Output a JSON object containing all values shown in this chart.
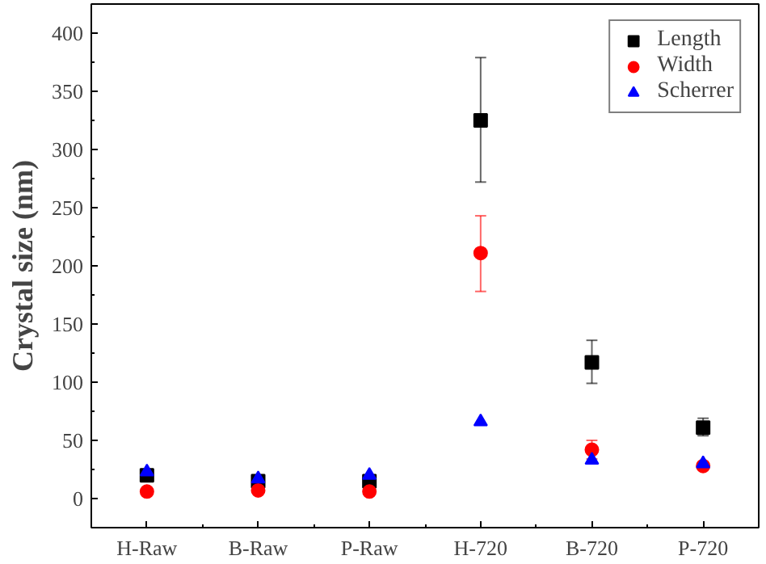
{
  "chart_data": {
    "type": "scatter",
    "ylabel": "Crystal size (nm)",
    "categories": [
      "H-Raw",
      "B-Raw",
      "P-Raw",
      "H-720",
      "B-720",
      "P-720"
    ],
    "ylim": [
      -25,
      425
    ],
    "yticks": [
      0,
      50,
      100,
      150,
      200,
      250,
      300,
      350,
      400
    ],
    "grid": false,
    "legend": "top right",
    "series": [
      {
        "name": "Length",
        "color": "#000000",
        "marker": "square",
        "values": [
          20,
          15,
          15,
          325,
          117,
          61
        ],
        "errors": [
          null,
          null,
          null,
          [
            272,
            379
          ],
          [
            99,
            136
          ],
          [
            54,
            69
          ]
        ]
      },
      {
        "name": "Width",
        "color": "#ff0000",
        "marker": "circle",
        "values": [
          6,
          7,
          6,
          211,
          42,
          28
        ],
        "errors": [
          null,
          null,
          null,
          [
            178,
            243
          ],
          [
            34,
            50
          ],
          null
        ]
      },
      {
        "name": "Scherrer",
        "color": "#0000ff",
        "marker": "triangle",
        "values": [
          23,
          17,
          20,
          66,
          33,
          30
        ],
        "errors": [
          null,
          null,
          null,
          null,
          null,
          null
        ]
      }
    ]
  }
}
